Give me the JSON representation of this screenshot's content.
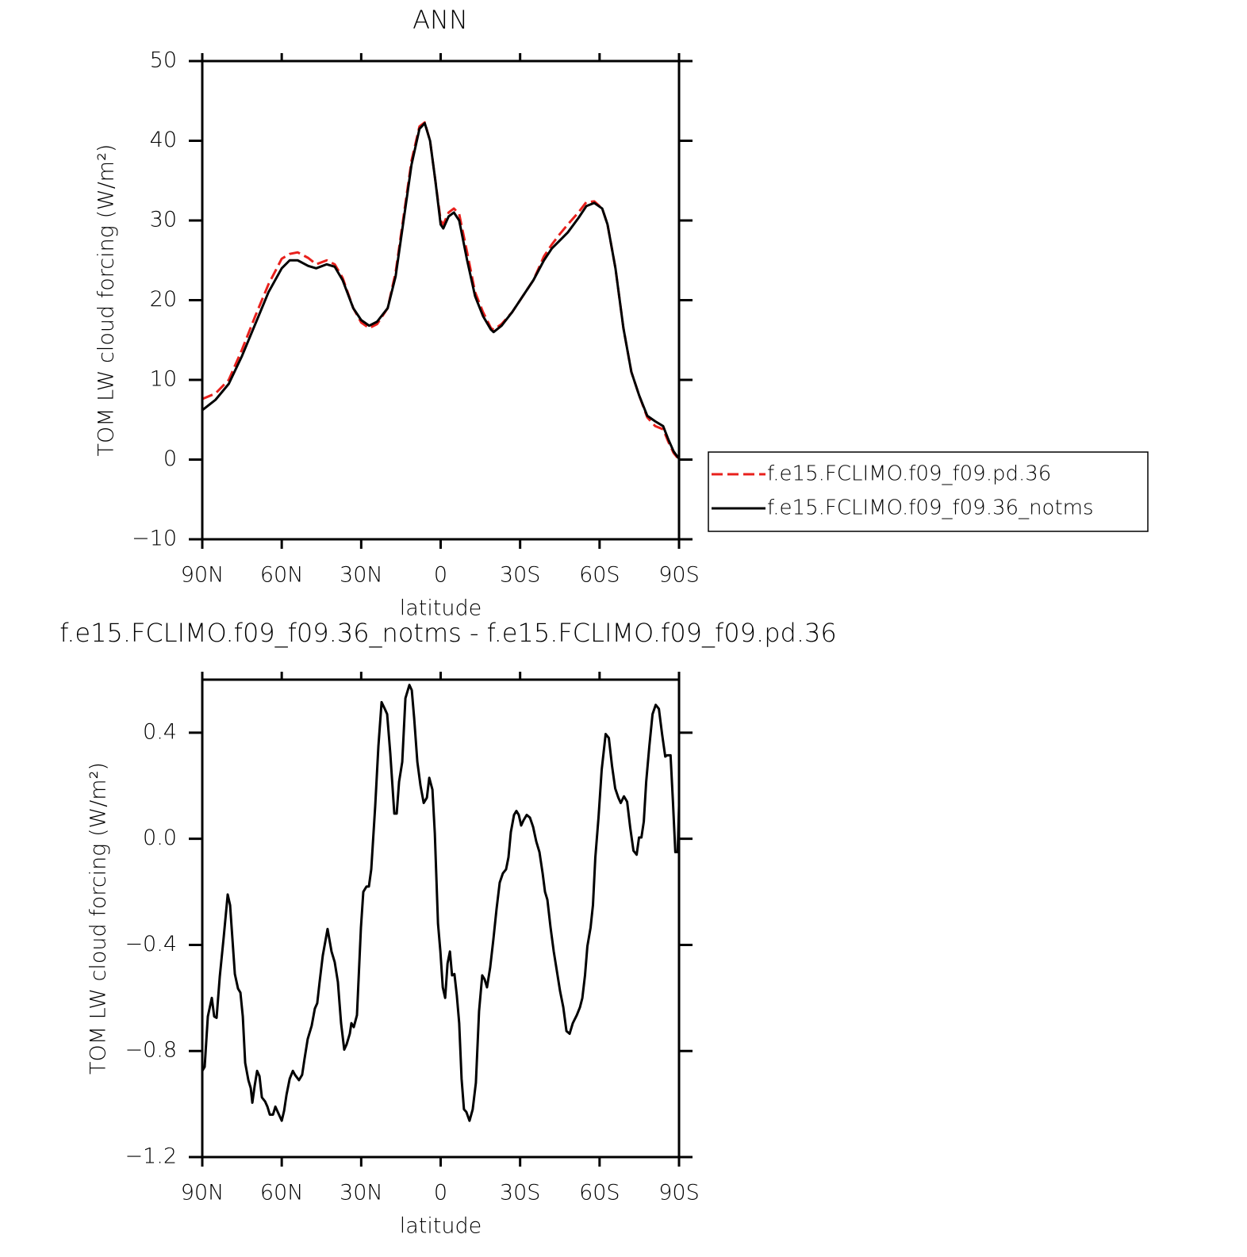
{
  "chart_data": [
    {
      "type": "line",
      "title": "ANN",
      "xlabel": "latitude",
      "ylabel": "TOM LW cloud forcing (W/m²)",
      "x": [
        90,
        85,
        80,
        75,
        70,
        65,
        60,
        57,
        54,
        50,
        47,
        43,
        40,
        37,
        33,
        30,
        27,
        24,
        20,
        17,
        14,
        11,
        8,
        6,
        4,
        2,
        0,
        -1,
        -3,
        -5,
        -7,
        -10,
        -13,
        -16,
        -19,
        -20,
        -23,
        -27,
        -31,
        -35,
        -39,
        -42,
        -45,
        -48,
        -52,
        -55,
        -58,
        -61,
        -63,
        -66,
        -69,
        -72,
        -75,
        -78,
        -81,
        -84,
        -86,
        -88,
        -90
      ],
      "series": [
        {
          "name": "f.e15.FCLIMO.f09_f09.pd.36",
          "color": "#e8201c",
          "line_style": "dashed",
          "values": [
            7.6,
            8.3,
            10,
            13.8,
            18,
            22,
            25.2,
            25.8,
            26,
            25.3,
            24.5,
            25,
            24.5,
            22.8,
            19,
            17.2,
            16.5,
            17,
            19,
            23.5,
            30.5,
            37.5,
            41.8,
            42.3,
            40,
            35,
            30,
            29.5,
            31,
            31.5,
            30.8,
            26,
            21,
            18.5,
            16.5,
            16.3,
            17,
            18.5,
            20.5,
            22.5,
            25.5,
            27,
            28.3,
            29.5,
            31,
            32.3,
            32.4,
            31.5,
            29.5,
            24,
            16.5,
            11,
            8,
            5.3,
            4.2,
            3.8,
            2.2,
            0.8,
            0
          ]
        },
        {
          "name": "f.e15.FCLIMO.f09_f09.36_notms",
          "color": "#000000",
          "line_style": "solid",
          "values": [
            6.2,
            7.5,
            9.5,
            13,
            17,
            21,
            24,
            25,
            25,
            24.3,
            24,
            24.5,
            24.2,
            22.5,
            19,
            17.5,
            16.8,
            17.3,
            19,
            23,
            30,
            37,
            41.5,
            42.2,
            40,
            35,
            29.5,
            29,
            30.5,
            31,
            30,
            25,
            20.5,
            18,
            16.3,
            16,
            16.8,
            18.5,
            20.5,
            22.5,
            25,
            26.5,
            27.5,
            28.5,
            30.3,
            31.8,
            32.2,
            31.5,
            29.5,
            24,
            16.5,
            11,
            8,
            5.5,
            4.8,
            4.2,
            2.5,
            1,
            0.1
          ]
        }
      ],
      "xlim": [
        90,
        -90
      ],
      "xticks": [
        {
          "value": 90,
          "label": "90N"
        },
        {
          "value": 60,
          "label": "60N"
        },
        {
          "value": 30,
          "label": "30N"
        },
        0,
        {
          "value": -30,
          "label": "30S"
        },
        {
          "value": -60,
          "label": "60S"
        },
        {
          "value": -90,
          "label": "90S"
        }
      ],
      "ylim": [
        -10,
        50
      ],
      "yticks": [
        {
          "value": -10,
          "label": "−10"
        },
        0,
        10,
        20,
        30,
        40,
        50
      ],
      "legend": "outside-right"
    },
    {
      "type": "line",
      "title": "f.e15.FCLIMO.f09_f09.36_notms - f.e15.FCLIMO.f09_f09.pd.36",
      "xlabel": "latitude",
      "ylabel": "TOM LW cloud forcing (W/m²)",
      "x": [
        90,
        89.1,
        87.9,
        86.4,
        85.5,
        84.6,
        83.4,
        81.9,
        80.4,
        79.5,
        77.7,
        76.5,
        75.6,
        74.7,
        73.8,
        72.6,
        71.7,
        71.1,
        70.2,
        69.3,
        68.4,
        67.5,
        66.3,
        65.4,
        64.5,
        63.3,
        62.4,
        61.5,
        60,
        59.1,
        58.2,
        57,
        55.8,
        55,
        53.5,
        52.3,
        51.4,
        50.2,
        48.7,
        47.5,
        46.6,
        45.7,
        44.5,
        42.7,
        41.2,
        40,
        38.8,
        37.6,
        36.4,
        35.5,
        34.3,
        33.7,
        32.8,
        31.6,
        30.1,
        29.2,
        28,
        27.1,
        26.2,
        24.7,
        23.5,
        22.3,
        21.1,
        20.2,
        19,
        17.5,
        16.6,
        15.7,
        14.5,
        13.3,
        11.8,
        10.9,
        10,
        8.8,
        7.6,
        6.4,
        5.2,
        4.3,
        3.1,
        2.2,
        1,
        0.1,
        -0.8,
        -1.7,
        -2.6,
        -3.5,
        -4.3,
        -5.2,
        -6.1,
        -7,
        -7.9,
        -8.8,
        -9.7,
        -10.9,
        -12.1,
        -13.3,
        -14.5,
        -15.7,
        -16.6,
        -17.5,
        -18.7,
        -19.9,
        -21.1,
        -22.3,
        -23.5,
        -24.7,
        -25.6,
        -26.5,
        -27.7,
        -28.6,
        -29.5,
        -30.4,
        -31.3,
        -32.5,
        -33.7,
        -34.9,
        -36.1,
        -37.3,
        -38.5,
        -39.4,
        -40.3,
        -41.5,
        -42.7,
        -43.9,
        -45.1,
        -46.3,
        -47.5,
        -48.7,
        -49.9,
        -51.4,
        -52.6,
        -53.5,
        -54.5,
        -55.4,
        -56.6,
        -57.5,
        -58.4,
        -59.6,
        -60.8,
        -62.3,
        -63.5,
        -64.7,
        -65.9,
        -67.1,
        -68,
        -69.2,
        -70.4,
        -71.6,
        -72.8,
        -74,
        -74.9,
        -75.8,
        -76.7,
        -77.6,
        -78.8,
        -80,
        -81.2,
        -82.4,
        -83.6,
        -84.8,
        -85.5,
        -86.8,
        -87.7,
        -88.6,
        -89.5,
        -90
      ],
      "series": [
        {
          "name": "f.e15.FCLIMO.f09_f09.36_notms - f.e15.FCLIMO.f09_f09.pd.36",
          "color": "#000000",
          "line_style": "solid",
          "values": [
            -0.875,
            -0.86,
            -0.67,
            -0.6,
            -0.67,
            -0.675,
            -0.52,
            -0.37,
            -0.21,
            -0.25,
            -0.51,
            -0.565,
            -0.58,
            -0.67,
            -0.845,
            -0.91,
            -0.94,
            -0.995,
            -0.93,
            -0.875,
            -0.895,
            -0.975,
            -0.99,
            -1.01,
            -1.04,
            -1.04,
            -1.01,
            -1.03,
            -1.063,
            -1.025,
            -0.965,
            -0.905,
            -0.875,
            -0.89,
            -0.91,
            -0.89,
            -0.83,
            -0.755,
            -0.705,
            -0.64,
            -0.62,
            -0.54,
            -0.44,
            -0.34,
            -0.425,
            -0.465,
            -0.54,
            -0.695,
            -0.795,
            -0.775,
            -0.735,
            -0.695,
            -0.71,
            -0.665,
            -0.335,
            -0.2,
            -0.18,
            -0.18,
            -0.115,
            0.125,
            0.35,
            0.515,
            0.49,
            0.47,
            0.32,
            0.095,
            0.095,
            0.215,
            0.29,
            0.53,
            0.58,
            0.56,
            0.455,
            0.29,
            0.2,
            0.135,
            0.155,
            0.23,
            0.185,
            0.02,
            -0.32,
            -0.425,
            -0.56,
            -0.6,
            -0.47,
            -0.425,
            -0.515,
            -0.51,
            -0.59,
            -0.695,
            -0.905,
            -1.02,
            -1.03,
            -1.063,
            -1.02,
            -0.92,
            -0.65,
            -0.515,
            -0.53,
            -0.56,
            -0.485,
            -0.38,
            -0.265,
            -0.165,
            -0.13,
            -0.115,
            -0.07,
            0.025,
            0.09,
            0.105,
            0.09,
            0.05,
            0.07,
            0.09,
            0.08,
            0.045,
            -0.01,
            -0.05,
            -0.13,
            -0.2,
            -0.23,
            -0.335,
            -0.425,
            -0.5,
            -0.575,
            -0.635,
            -0.725,
            -0.735,
            -0.695,
            -0.665,
            -0.635,
            -0.6,
            -0.515,
            -0.405,
            -0.335,
            -0.25,
            -0.07,
            0.08,
            0.26,
            0.395,
            0.38,
            0.275,
            0.19,
            0.155,
            0.135,
            0.16,
            0.14,
            0.04,
            -0.045,
            -0.06,
            0.005,
            0.005,
            0.065,
            0.215,
            0.35,
            0.47,
            0.505,
            0.49,
            0.395,
            0.31,
            0.315,
            0.315,
            0.14,
            -0.05,
            -0.05,
            0.125
          ]
        }
      ],
      "xlim": [
        90,
        -90
      ],
      "xticks": [
        {
          "value": 90,
          "label": "90N"
        },
        {
          "value": 60,
          "label": "60N"
        },
        {
          "value": 30,
          "label": "30N"
        },
        0,
        {
          "value": -30,
          "label": "30S"
        },
        {
          "value": -60,
          "label": "60S"
        },
        {
          "value": -90,
          "label": "90S"
        }
      ],
      "ylim": [
        -1.2,
        0.6
      ],
      "yticks": [
        {
          "value": -1.2,
          "label": "−1.2"
        },
        {
          "value": -0.8,
          "label": "−0.8"
        },
        {
          "value": -0.4,
          "label": "−0.4"
        },
        {
          "value": 0,
          "label": "0.0"
        },
        0.4
      ]
    }
  ]
}
